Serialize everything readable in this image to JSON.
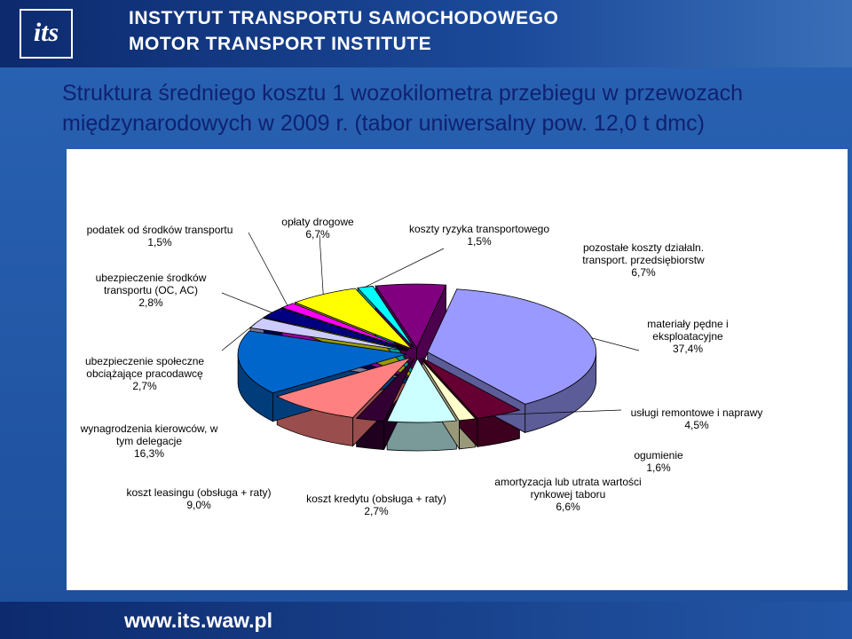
{
  "header": {
    "logo": "its",
    "institute_pl": "INSTYTUT TRANSPORTU SAMOCHODOWEGO",
    "institute_en": "MOTOR TRANSPORT INSTITUTE"
  },
  "footer": {
    "url": "www.its.waw.pl"
  },
  "chart_data": {
    "type": "pie",
    "title": "Struktura średniego kosztu 1 wozokilometra przebiegu w przewozach międzynarodowych w 2009 r.  (tabor uniwersalny pow. 12,0 t dmc)",
    "categories": [
      "materiały pędne i eksploatacyjne",
      "usługi remontowe i naprawy",
      "ogumienie",
      "amortyzacja lub utrata wartości rynkowej taboru",
      "koszt kredytu (obsługa + raty)",
      "koszt leasingu (obsługa + raty)",
      "wynagrodzenia kierowców, w tym delegacje",
      "ubezpieczenie społeczne obciążające pracodawcę",
      "ubezpieczenie środków transportu (OC, AC)",
      "podatek od środków transportu",
      "opłaty drogowe",
      "koszty ryzyka transportowego",
      "pozostałe koszty działaln. transport. przedsiębiorstw"
    ],
    "values": [
      37.4,
      4.5,
      1.6,
      6.6,
      2.7,
      9.0,
      16.3,
      2.7,
      2.8,
      1.5,
      6.7,
      1.5,
      6.7
    ],
    "value_labels": [
      "37,4%",
      "4,5%",
      "1,6%",
      "6,6%",
      "2,7%",
      "9,0%",
      "16,3%",
      "2,7%",
      "2,8%",
      "1,5%",
      "6,7%",
      "1,5%",
      "6,7%"
    ],
    "colors": [
      "#9999ff",
      "#660033",
      "#ffffcc",
      "#ccffff",
      "#330033",
      "#ff8080",
      "#0066cc",
      "#ccccff",
      "#000080",
      "#ff00ff",
      "#ffff00",
      "#00ffff",
      "#800080"
    ]
  }
}
